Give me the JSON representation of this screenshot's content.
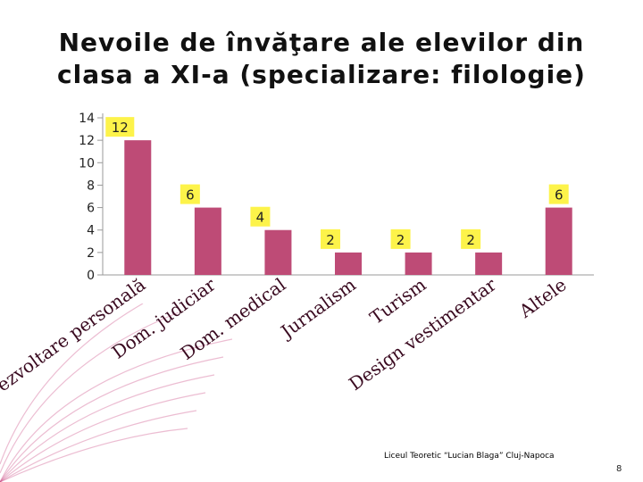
{
  "title_lines": [
    "Nevoile de învăţare ale elevilor din",
    "clasa a XI-a (specializare: filologie)"
  ],
  "footer": "Liceul Teoretic “Lucian Blaga” Cluj-Napoca",
  "page_number": "8",
  "colors": {
    "bar": "#be4b76",
    "label_bg": "#fdf34a",
    "axis_label": "#3a0a20",
    "deco": "#c9427e"
  },
  "chart_data": {
    "type": "bar",
    "categories": [
      "Dezvoltare personală",
      "Dom. judiciar",
      "Dom. medical",
      "Jurnalism",
      "Turism",
      "Design vestimentar",
      "Altele"
    ],
    "values": [
      12,
      6,
      4,
      2,
      2,
      2,
      6
    ],
    "ylim": [
      0,
      14
    ],
    "yticks": [
      "0",
      "2",
      "4",
      "6",
      "8",
      "10",
      "12",
      "14"
    ],
    "data_labels": [
      "12",
      "6",
      "4",
      "2",
      "2",
      "2",
      "6"
    ],
    "grid": false,
    "legend": "none"
  }
}
